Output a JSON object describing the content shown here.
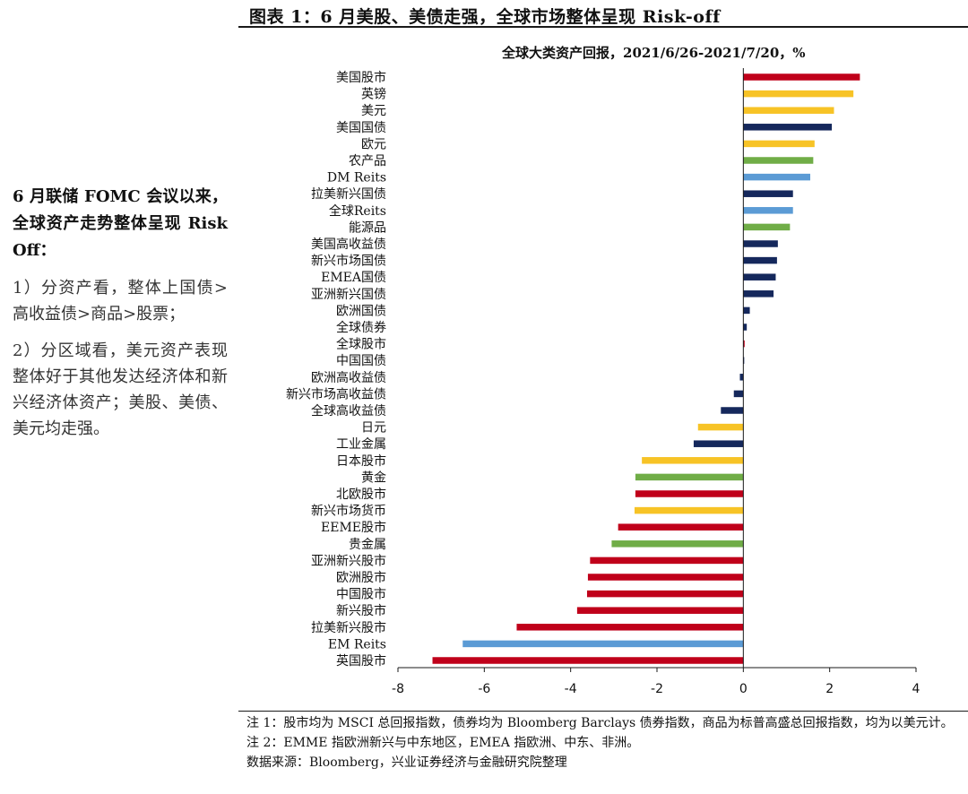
{
  "figure_title": "图表 1：6 月美股、美债走强，全球市场整体呈现 Risk-off",
  "sidebar": {
    "heading": "6 月联储 FOMC 会议以来，全球资产走势整体呈现 Risk Off：",
    "points": [
      "1）分资产看，整体上国债>高收益债>商品>股票；",
      "2）分区域看，美元资产表现整体好于其他发达经济体和新兴经济体资产；美股、美债、美元均走强。"
    ]
  },
  "chart_data": {
    "type": "bar",
    "orientation": "horizontal",
    "title": "全球大类资产回报，2021/6/26-2021/7/20，%",
    "xlim": [
      -8,
      4
    ],
    "xticks": [
      -8,
      -6,
      -4,
      -2,
      0,
      2,
      4
    ],
    "tick_labels": [
      "-8",
      "-6",
      "-4",
      "-2",
      "0",
      "2",
      "4"
    ],
    "grid": false,
    "legend": "none",
    "colors": {
      "equity": "#c0001a",
      "currency": "#f7c326",
      "bond": "#15285c",
      "commodity": "#70ad47",
      "reits": "#5b9bd5"
    },
    "categories": [
      "美国股市",
      "英镑",
      "美元",
      "美国国债",
      "欧元",
      "农产品",
      "DM Reits",
      "拉美新兴国债",
      "全球Reits",
      "能源品",
      "美国高收益债",
      "新兴市场国债",
      "EMEA国债",
      "亚洲新兴国债",
      "欧洲国债",
      "全球债券",
      "全球股市",
      "中国国债",
      "欧洲高收益债",
      "新兴市场高收益债",
      "全球高收益债",
      "日元",
      "工业金属",
      "日本股市",
      "黄金",
      "北欧股市",
      "新兴市场货币",
      "EEME股市",
      "贵金属",
      "亚洲新兴股市",
      "欧洲股市",
      "中国股市",
      "新兴股市",
      "拉美新兴股市",
      "EM Reits",
      "英国股市"
    ],
    "values": [
      2.7,
      2.55,
      2.1,
      2.05,
      1.65,
      1.62,
      1.55,
      1.15,
      1.15,
      1.08,
      0.8,
      0.78,
      0.75,
      0.7,
      0.15,
      0.08,
      0.03,
      0.02,
      -0.08,
      -0.22,
      -0.52,
      -1.05,
      -1.15,
      -2.35,
      -2.5,
      -2.5,
      -2.52,
      -2.9,
      -3.05,
      -3.55,
      -3.6,
      -3.62,
      -3.85,
      -5.25,
      -6.5,
      -7.2
    ],
    "groups": [
      "equity",
      "currency",
      "currency",
      "bond",
      "currency",
      "commodity",
      "reits",
      "bond",
      "reits",
      "commodity",
      "bond",
      "bond",
      "bond",
      "bond",
      "bond",
      "bond",
      "equity",
      "bond",
      "bond",
      "bond",
      "bond",
      "currency",
      "bond",
      "currency",
      "commodity",
      "equity",
      "currency",
      "equity",
      "commodity",
      "equity",
      "equity",
      "equity",
      "equity",
      "equity",
      "reits",
      "equity"
    ]
  },
  "footnotes": [
    "注 1：股市均为 MSCI 总回报指数，债券均为 Bloomberg Barclays 债券指数，商品为标普高盛总回报指数，均为以美元计。",
    "注 2：EMME 指欧洲新兴与中东地区，EMEA 指欧洲、中东、非洲。",
    "数据来源：Bloomberg，兴业证券经济与金融研究院整理"
  ]
}
